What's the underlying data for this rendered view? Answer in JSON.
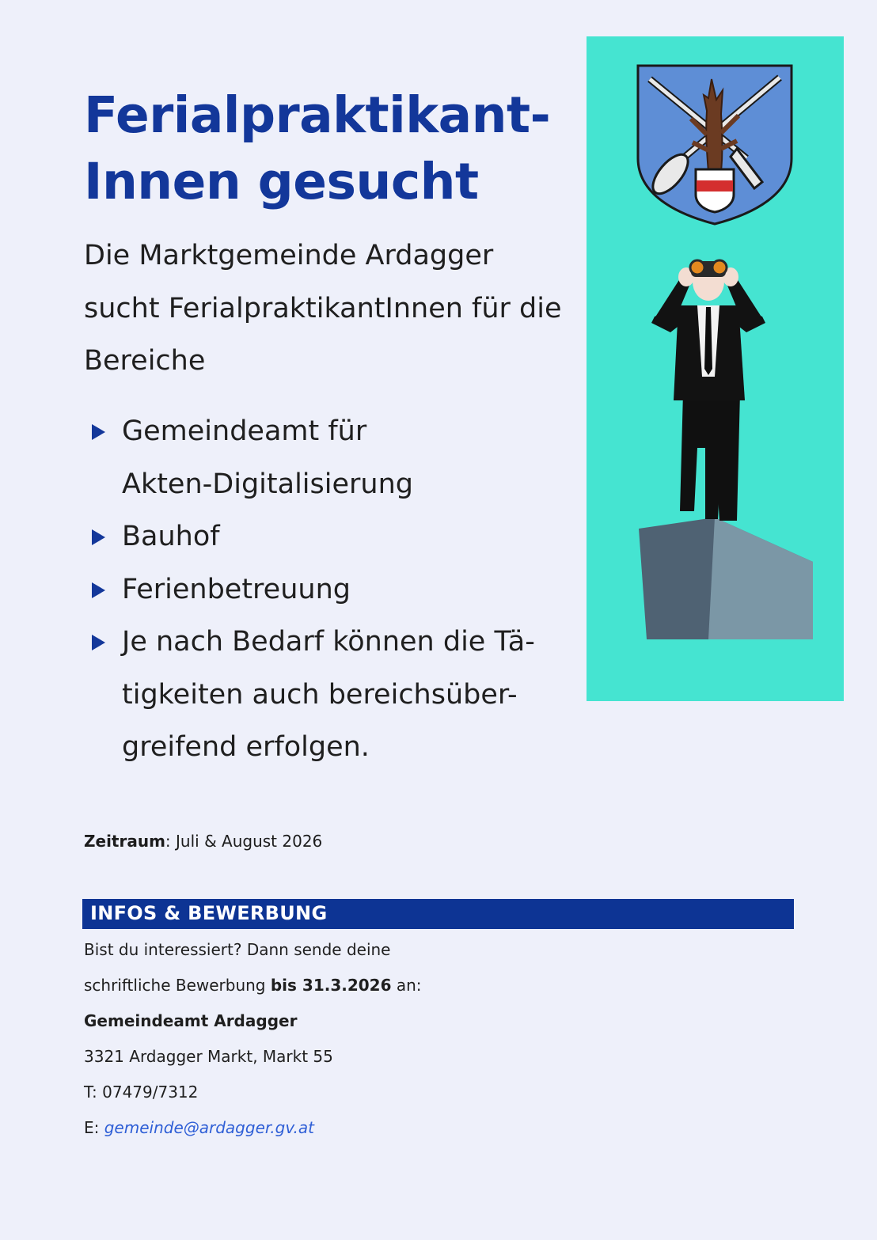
{
  "headline": {
    "line1": "Ferialpraktikant-",
    "line2": "Innen gesucht"
  },
  "intro": {
    "line1": "Die Marktgemeinde Ardagger",
    "line2": "sucht FerialpraktikantInnen für die",
    "line3": "Bereiche"
  },
  "areas": [
    {
      "line1": "Gemeindeamt für",
      "line2": "Akten-Digitalisierung"
    },
    {
      "line1": "Bauhof"
    },
    {
      "line1": "Ferienbetreuung"
    },
    {
      "line1": "Je nach Bedarf können die Tä-",
      "line2": "tigkeiten auch bereichsüber-",
      "line3": "greifend erfolgen."
    }
  ],
  "period": {
    "label": "Zeitraum",
    "value": ": Juli & August 2026"
  },
  "infos": {
    "heading": "INFOS & BEWERBUNG",
    "line1": "Bist du interessiert? Dann sende deine",
    "line2_pre": "schriftliche Bewerbung ",
    "line2_bold": "bis 31.3.2026",
    "line2_post": " an:",
    "office": "Gemeindeamt Ardagger",
    "address": "3321 Ardagger Markt, Markt 55",
    "phone": "T: 07479/7312",
    "email_label": "E: ",
    "email": "gemeinde@ardagger.gv.at"
  },
  "colors": {
    "headline": "#13379a",
    "panel": "#45e4d1",
    "infos_bar": "#0d3494",
    "link": "#2f5fd6"
  },
  "icons": [
    "coat-of-arms-icon",
    "binoculars-man-illustration",
    "bullet-triangle-icon"
  ]
}
